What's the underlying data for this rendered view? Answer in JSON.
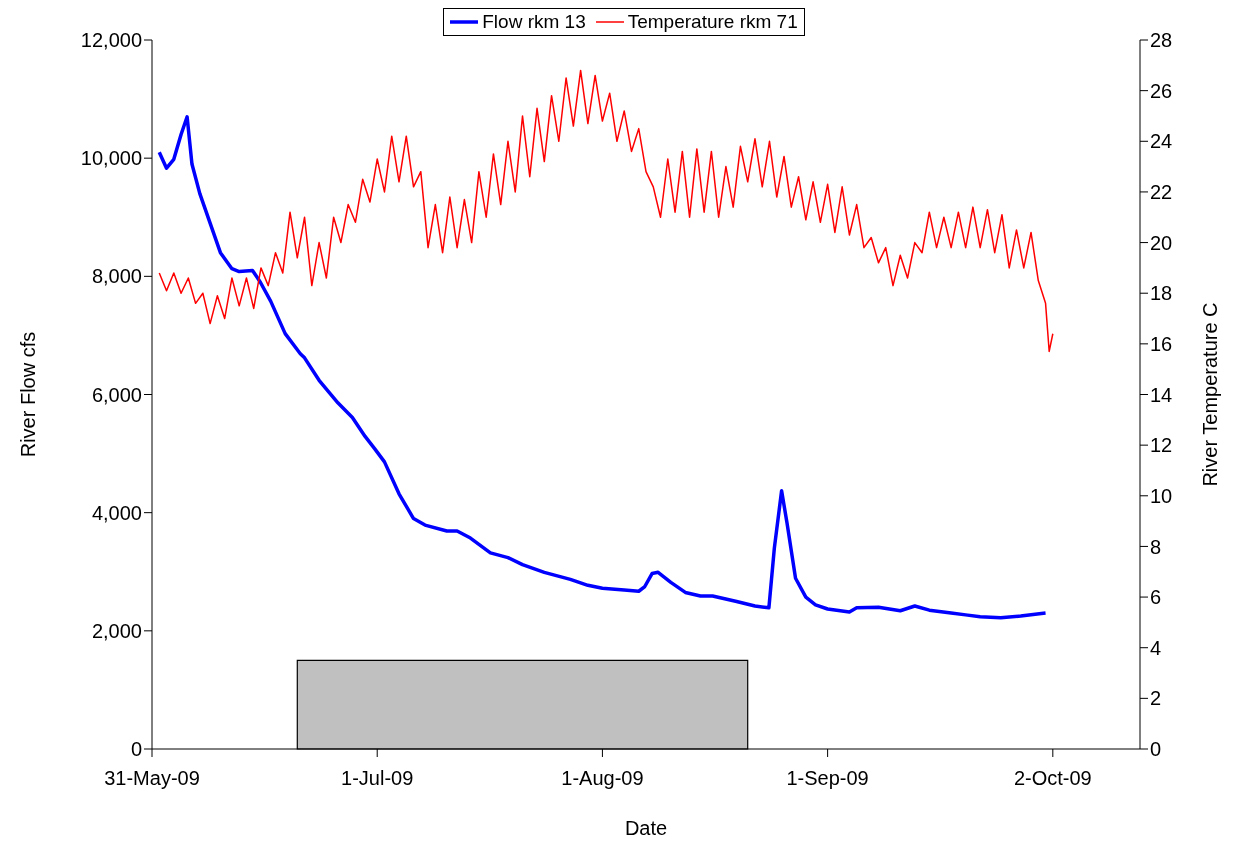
{
  "chart_data": {
    "type": "line",
    "xlabel": "Date",
    "ylabel": "River Flow cfs",
    "y2label": "River Temperature C",
    "xlim": [
      "2009-05-31",
      "2009-10-14"
    ],
    "xticks": [
      {
        "value": "2009-05-31",
        "label": "31-May-09"
      },
      {
        "value": "2009-07-01",
        "label": "1-Jul-09"
      },
      {
        "value": "2009-08-01",
        "label": "1-Aug-09"
      },
      {
        "value": "2009-09-01",
        "label": "1-Sep-09"
      },
      {
        "value": "2009-10-02",
        "label": "2-Oct-09"
      }
    ],
    "ylim": [
      0,
      12000
    ],
    "yticks": [
      0,
      {
        "value": 2000,
        "label": "2,000"
      },
      {
        "value": 4000,
        "label": "4,000"
      },
      {
        "value": 6000,
        "label": "6,000"
      },
      {
        "value": 8000,
        "label": "8,000"
      },
      {
        "value": 10000,
        "label": "10,000"
      },
      {
        "value": 12000,
        "label": "12,000"
      }
    ],
    "y2lim": [
      0,
      28
    ],
    "y2ticks": [
      0,
      2,
      4,
      6,
      8,
      10,
      12,
      14,
      16,
      18,
      20,
      22,
      24,
      26,
      28
    ],
    "legend": "top",
    "marker": "none",
    "line_style": "solid",
    "bands": [
      {
        "axis": "x",
        "from": "2009-06-20",
        "to": "2009-08-21",
        "color": "#c0c0c0"
      }
    ],
    "series": [
      {
        "name": "Flow rkm 13",
        "color": "#0000ff",
        "x": [
          "2009-06-01",
          "2009-06-02",
          "2009-06-03",
          "2009-06-04",
          "2009-06-04T20:00",
          "2009-06-05T12:00",
          "2009-06-06T14:00",
          "2009-06-08",
          "2009-06-09T10:00",
          "2009-06-11",
          "2009-06-12",
          "2009-06-13T20:00",
          "2009-06-14T22:00",
          "2009-06-16T08:00",
          "2009-06-18T08:00",
          "2009-06-20T10:00",
          "2009-06-21",
          "2009-06-23",
          "2009-06-25T14:00",
          "2009-06-27T14:00",
          "2009-06-29T08:00",
          "2009-06-30T16:00",
          "2009-07-02",
          "2009-07-04",
          "2009-07-06",
          "2009-07-07T14:00",
          "2009-07-10T14:00",
          "2009-07-12",
          "2009-07-13T20:00",
          "2009-07-16T14:00",
          "2009-07-19",
          "2009-07-21",
          "2009-07-24",
          "2009-07-27T14:00",
          "2009-07-30",
          "2009-08-01",
          "2009-08-04",
          "2009-08-06",
          "2009-08-06T20:00",
          "2009-08-07T20:00",
          "2009-08-08T16:00",
          "2009-08-10T10:00",
          "2009-08-12T10:00",
          "2009-08-14T12:00",
          "2009-08-16T04:00",
          "2009-08-19T08:00",
          "2009-08-22",
          "2009-08-23T22:00",
          "2009-08-24T16:00",
          "2009-08-25T16:00",
          "2009-08-26T10:00",
          "2009-08-27T14:00",
          "2009-08-29",
          "2009-08-30T08:00",
          "2009-09-01",
          "2009-09-04",
          "2009-09-05",
          "2009-09-08",
          "2009-09-11",
          "2009-09-13",
          "2009-09-15",
          "2009-09-18",
          "2009-09-20",
          "2009-09-22",
          "2009-09-24T20:00",
          "2009-09-27T14:00",
          "2009-10-01"
        ],
        "values": [
          10100,
          9830,
          9980,
          10400,
          10700,
          9900,
          9400,
          8900,
          8400,
          8130,
          8080,
          8100,
          7900,
          7580,
          7030,
          6690,
          6620,
          6240,
          5860,
          5610,
          5290,
          5080,
          4860,
          4320,
          3900,
          3790,
          3690,
          3690,
          3570,
          3320,
          3240,
          3120,
          2990,
          2870,
          2770,
          2720,
          2690,
          2670,
          2750,
          2970,
          2990,
          2820,
          2650,
          2590,
          2590,
          2500,
          2420,
          2390,
          3400,
          4370,
          3820,
          2890,
          2570,
          2440,
          2370,
          2320,
          2390,
          2400,
          2340,
          2420,
          2350,
          2300,
          2270,
          2240,
          2220,
          2250,
          2300
        ]
      },
      {
        "name": "Temperature rkm 71",
        "color": "#ff0000",
        "axis": "y2",
        "x": [
          "2009-06-01",
          "2009-06-02",
          "2009-06-03",
          "2009-06-04",
          "2009-06-05",
          "2009-06-06",
          "2009-06-07",
          "2009-06-08",
          "2009-06-09",
          "2009-06-10",
          "2009-06-11",
          "2009-06-12",
          "2009-06-13",
          "2009-06-14",
          "2009-06-15",
          "2009-06-16",
          "2009-06-17",
          "2009-06-18",
          "2009-06-19",
          "2009-06-20",
          "2009-06-21",
          "2009-06-22",
          "2009-06-23",
          "2009-06-24",
          "2009-06-25",
          "2009-06-26",
          "2009-06-27",
          "2009-06-28",
          "2009-06-29",
          "2009-06-30",
          "2009-07-01",
          "2009-07-02",
          "2009-07-03",
          "2009-07-04",
          "2009-07-05",
          "2009-07-06",
          "2009-07-07",
          "2009-07-08",
          "2009-07-09",
          "2009-07-10",
          "2009-07-11",
          "2009-07-12",
          "2009-07-13",
          "2009-07-14",
          "2009-07-15",
          "2009-07-16",
          "2009-07-17",
          "2009-07-18",
          "2009-07-19",
          "2009-07-20",
          "2009-07-21",
          "2009-07-22",
          "2009-07-23",
          "2009-07-24",
          "2009-07-25",
          "2009-07-26",
          "2009-07-27",
          "2009-07-28",
          "2009-07-29",
          "2009-07-30",
          "2009-07-31",
          "2009-08-01",
          "2009-08-02",
          "2009-08-03",
          "2009-08-04",
          "2009-08-05",
          "2009-08-06",
          "2009-08-07",
          "2009-08-08",
          "2009-08-09",
          "2009-08-10",
          "2009-08-11",
          "2009-08-12",
          "2009-08-13",
          "2009-08-14",
          "2009-08-15",
          "2009-08-16",
          "2009-08-17",
          "2009-08-18",
          "2009-08-19",
          "2009-08-20",
          "2009-08-21",
          "2009-08-22",
          "2009-08-23",
          "2009-08-24",
          "2009-08-25",
          "2009-08-26",
          "2009-08-27",
          "2009-08-28",
          "2009-08-29",
          "2009-08-30",
          "2009-08-31",
          "2009-09-01",
          "2009-09-02",
          "2009-09-03",
          "2009-09-04",
          "2009-09-05",
          "2009-09-06",
          "2009-09-07",
          "2009-09-08",
          "2009-09-09",
          "2009-09-10",
          "2009-09-11",
          "2009-09-12",
          "2009-09-13",
          "2009-09-14",
          "2009-09-15",
          "2009-09-16",
          "2009-09-17",
          "2009-09-18",
          "2009-09-19",
          "2009-09-20",
          "2009-09-21",
          "2009-09-22",
          "2009-09-23",
          "2009-09-24",
          "2009-09-25",
          "2009-09-26",
          "2009-09-27",
          "2009-09-28",
          "2009-09-29",
          "2009-09-30",
          "2009-10-01",
          "2009-10-01T12:00",
          "2009-10-02"
        ],
        "values": [
          18.8,
          18.1,
          18.8,
          18.0,
          18.6,
          17.6,
          18.0,
          16.8,
          17.9,
          17.0,
          18.6,
          17.5,
          18.6,
          17.4,
          19.0,
          18.3,
          19.6,
          18.8,
          21.2,
          19.4,
          21.0,
          18.3,
          20.0,
          18.6,
          21.0,
          20.0,
          21.5,
          20.8,
          22.5,
          21.6,
          23.3,
          22.0,
          24.2,
          22.4,
          24.2,
          22.2,
          22.8,
          19.8,
          21.5,
          19.6,
          21.8,
          19.8,
          21.7,
          20.0,
          22.8,
          21.0,
          23.5,
          21.5,
          24.0,
          22.0,
          25.0,
          22.6,
          25.3,
          23.2,
          25.8,
          24.0,
          26.5,
          24.6,
          26.8,
          24.7,
          26.6,
          24.8,
          25.9,
          24.0,
          25.2,
          23.6,
          24.5,
          22.8,
          22.2,
          21.0,
          23.3,
          21.2,
          23.6,
          21.0,
          23.7,
          21.2,
          23.6,
          21.0,
          23.0,
          21.4,
          23.8,
          22.4,
          24.1,
          22.2,
          24.0,
          21.8,
          23.4,
          21.4,
          22.6,
          20.9,
          22.4,
          20.8,
          22.3,
          20.4,
          22.2,
          20.3,
          21.5,
          19.8,
          20.2,
          19.2,
          19.8,
          18.3,
          19.5,
          18.6,
          20.0,
          19.6,
          21.2,
          19.8,
          21.0,
          19.8,
          21.2,
          19.8,
          21.4,
          19.8,
          21.3,
          19.6,
          21.1,
          19.0,
          20.5,
          19.0,
          20.4,
          18.5,
          17.6,
          15.7,
          16.4
        ]
      }
    ]
  }
}
